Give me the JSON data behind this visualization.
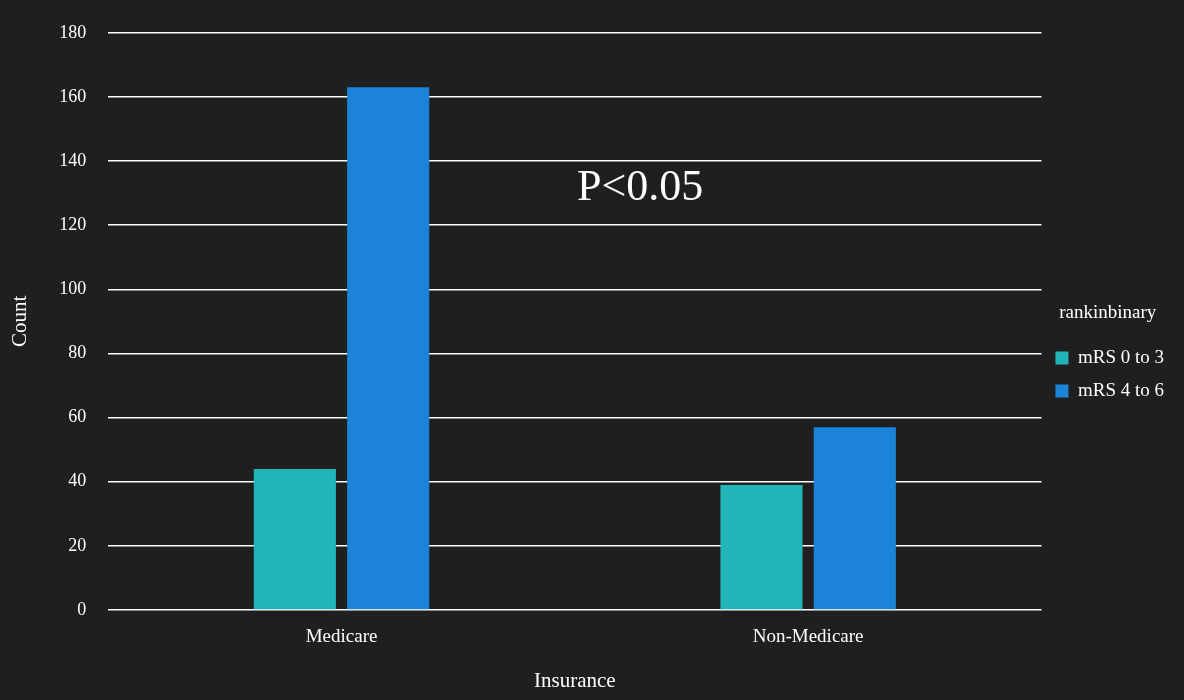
{
  "chart_data": {
    "type": "bar",
    "xlabel": "Insurance",
    "ylabel": "Count",
    "legend_title": "rankinbinary",
    "categories": [
      "Medicare",
      "Non-Medicare"
    ],
    "series": [
      {
        "name": "mRS 0 to 3",
        "color": "#22b5b8",
        "values": [
          44,
          39
        ]
      },
      {
        "name": "mRS 4 to 6",
        "color": "#1b84d9",
        "values": [
          163,
          57
        ]
      }
    ],
    "ylim": [
      0,
      180
    ],
    "yticks": [
      0,
      20,
      40,
      60,
      80,
      100,
      120,
      140,
      160,
      180
    ],
    "grid": "y",
    "legend": "right",
    "annotations": [
      "P<0.05"
    ]
  }
}
